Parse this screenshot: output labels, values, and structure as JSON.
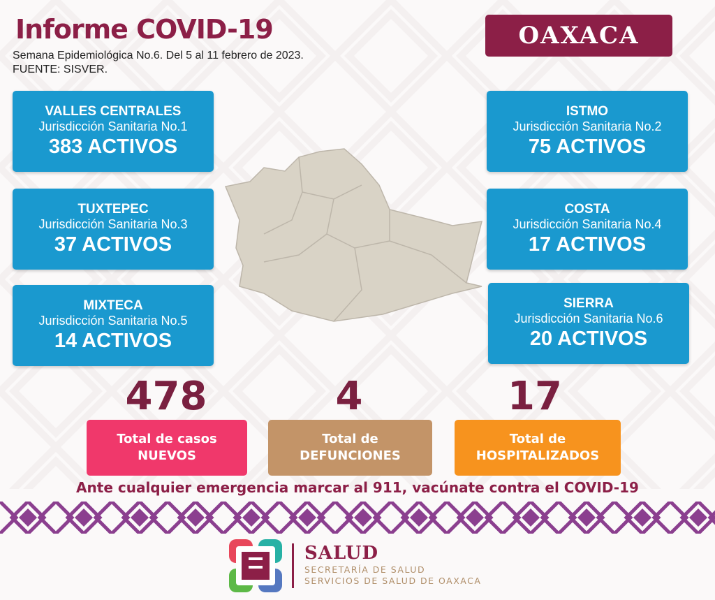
{
  "header": {
    "title": "Informe COVID-19",
    "subtitle_line1": "Semana Epidemiológica No.6. Del 5 al 11 febrero de 2023.",
    "subtitle_line2": "FUENTE: SISVER.",
    "state_badge": "OAXACA"
  },
  "jurisdictions": [
    {
      "name": "VALLES CENTRALES",
      "jurisdiction": "Jurisdicción Sanitaria No.1",
      "active": "383 ACTIVOS"
    },
    {
      "name": "ISTMO",
      "jurisdiction": "Jurisdicción Sanitaria No.2",
      "active": "75 ACTIVOS"
    },
    {
      "name": "TUXTEPEC",
      "jurisdiction": "Jurisdicción Sanitaria No.3",
      "active": "37 ACTIVOS"
    },
    {
      "name": "COSTA",
      "jurisdiction": "Jurisdicción Sanitaria No.4",
      "active": "17 ACTIVOS"
    },
    {
      "name": "MIXTECA",
      "jurisdiction": "Jurisdicción Sanitaria No.5",
      "active": "14 ACTIVOS"
    },
    {
      "name": "SIERRA",
      "jurisdiction": "Jurisdicción Sanitaria No.6",
      "active": "20 ACTIVOS"
    }
  ],
  "totals": [
    {
      "value": "478",
      "line1": "Total de casos",
      "line2": "NUEVOS",
      "color": "#f0386b"
    },
    {
      "value": "4",
      "line1": "Total de",
      "line2": "DEFUNCIONES",
      "color": "#c39468"
    },
    {
      "value": "17",
      "line1": "Total de",
      "line2": "HOSPITALIZADOS",
      "color": "#f7931e"
    }
  ],
  "message": "Ante cualquier emergencia marcar al 911, vacúnate contra el COVID-19",
  "footer": {
    "brand": "SALUD",
    "line1": "SECRETARÍA DE SALUD",
    "line2": "SERVICIOS DE SALUD DE OAXACA"
  },
  "colors": {
    "primary": "#8c1f47",
    "card": "#1a99cf",
    "band": "#8b3f8f"
  }
}
